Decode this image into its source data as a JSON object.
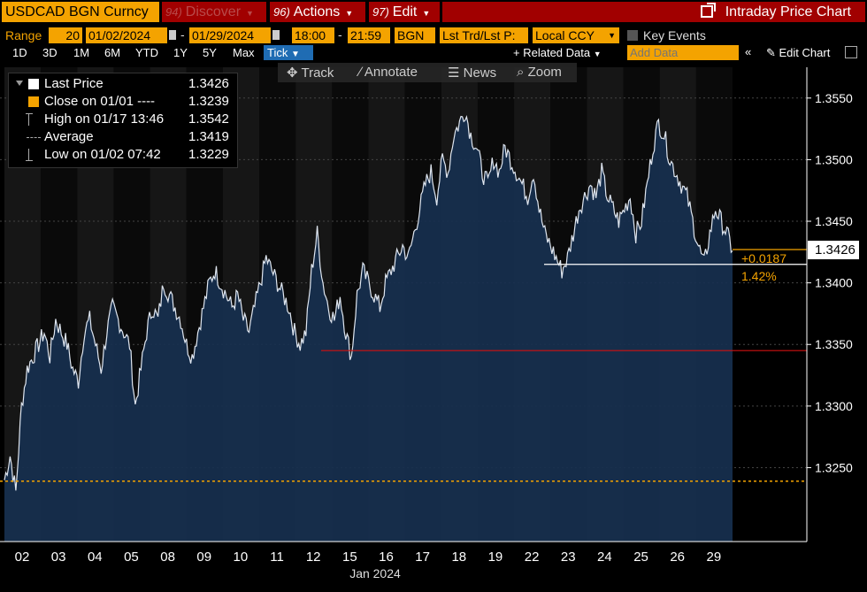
{
  "title_bar": {
    "ticker": "USDCAD BGN Curncy",
    "discover": {
      "num": "94)",
      "label": "Discover"
    },
    "actions": {
      "num": "96)",
      "label": "Actions"
    },
    "edit": {
      "num": "97)",
      "label": "Edit"
    },
    "chart_title": "Intraday Price Chart"
  },
  "range_bar": {
    "range_label": "Range",
    "range_value": "20",
    "start_date": "01/02/2024",
    "end_date": "01/29/2024",
    "start_time": "18:00",
    "end_time": "21:59",
    "source": "BGN",
    "market": "Lst Trd/Lst P:",
    "currency": "Local CCY",
    "key_events": "Key Events"
  },
  "period_bar": {
    "periods": [
      "1D",
      "3D",
      "1M",
      "6M",
      "YTD",
      "1Y",
      "5Y",
      "Max"
    ],
    "tick": "Tick",
    "related_data": "Related Data",
    "add_data_placeholder": "Add Data",
    "edit_chart": "Edit Chart"
  },
  "chart_tools": {
    "track": "Track",
    "annotate": "Annotate",
    "news": "News",
    "zoom": "Zoom"
  },
  "legend": {
    "last_price": {
      "label": "Last Price",
      "value": "1.3426"
    },
    "close": {
      "label": "Close on 01/01 ----",
      "value": "1.3239"
    },
    "high": {
      "label": "High on 01/17 13:46",
      "value": "1.3542"
    },
    "average": {
      "label": "Average",
      "value": "1.3419"
    },
    "low": {
      "label": "Low on 01/02 07:42",
      "value": "1.3229"
    }
  },
  "price_tag": "1.3426",
  "change_abs": "+0.0187",
  "change_pct": "1.42%",
  "colors": {
    "accent": "#f4a300",
    "menu": "#a10000",
    "tick": "#1f6cb3",
    "area": "#17304f",
    "line": "#dfe6f0"
  },
  "chart_data": {
    "type": "area",
    "x_label": "Jan 2024",
    "x_ticks": [
      "02",
      "03",
      "04",
      "05",
      "08",
      "09",
      "10",
      "11",
      "12",
      "15",
      "16",
      "17",
      "18",
      "19",
      "22",
      "23",
      "24",
      "25",
      "26",
      "29"
    ],
    "y_ticks": [
      "1.3550",
      "1.3500",
      "1.3450",
      "1.3400",
      "1.3350",
      "1.3300",
      "1.3250"
    ],
    "y_range": [
      1.319,
      1.3575
    ],
    "reference_lines": {
      "close_prev": 1.3239,
      "support_low": 1.3345,
      "recent_low": 1.3415
    },
    "series": [
      {
        "values": [
          1.324,
          1.326,
          1.323,
          1.33,
          1.333,
          1.334,
          1.335,
          1.336,
          1.334,
          1.337,
          1.336,
          1.335,
          1.333,
          1.332,
          1.336,
          1.337,
          1.335,
          1.333,
          1.336,
          1.338,
          1.337,
          1.336,
          1.335,
          1.33,
          1.333,
          1.336,
          1.338,
          1.337,
          1.34,
          1.339,
          1.338,
          1.337,
          1.335,
          1.334,
          1.336,
          1.338,
          1.34,
          1.341,
          1.34,
          1.339,
          1.338,
          1.339,
          1.337,
          1.336,
          1.338,
          1.34,
          1.342,
          1.341,
          1.34,
          1.339,
          1.338,
          1.336,
          1.335,
          1.336,
          1.341,
          1.344,
          1.34,
          1.338,
          1.337,
          1.339,
          1.336,
          1.334,
          1.339,
          1.341,
          1.34,
          1.339,
          1.338,
          1.34,
          1.341,
          1.342,
          1.343,
          1.342,
          1.344,
          1.346,
          1.348,
          1.349,
          1.347,
          1.35,
          1.349,
          1.352,
          1.353,
          1.354,
          1.352,
          1.351,
          1.349,
          1.348,
          1.35,
          1.349,
          1.351,
          1.35,
          1.349,
          1.348,
          1.347,
          1.349,
          1.346,
          1.344,
          1.343,
          1.342,
          1.341,
          1.342,
          1.344,
          1.346,
          1.347,
          1.348,
          1.347,
          1.349,
          1.347,
          1.346,
          1.345,
          1.346,
          1.347,
          1.344,
          1.345,
          1.348,
          1.351,
          1.353,
          1.352,
          1.35,
          1.349,
          1.348,
          1.347,
          1.345,
          1.343,
          1.3415,
          1.344,
          1.346,
          1.345,
          1.344,
          1.3426
        ]
      }
    ]
  }
}
